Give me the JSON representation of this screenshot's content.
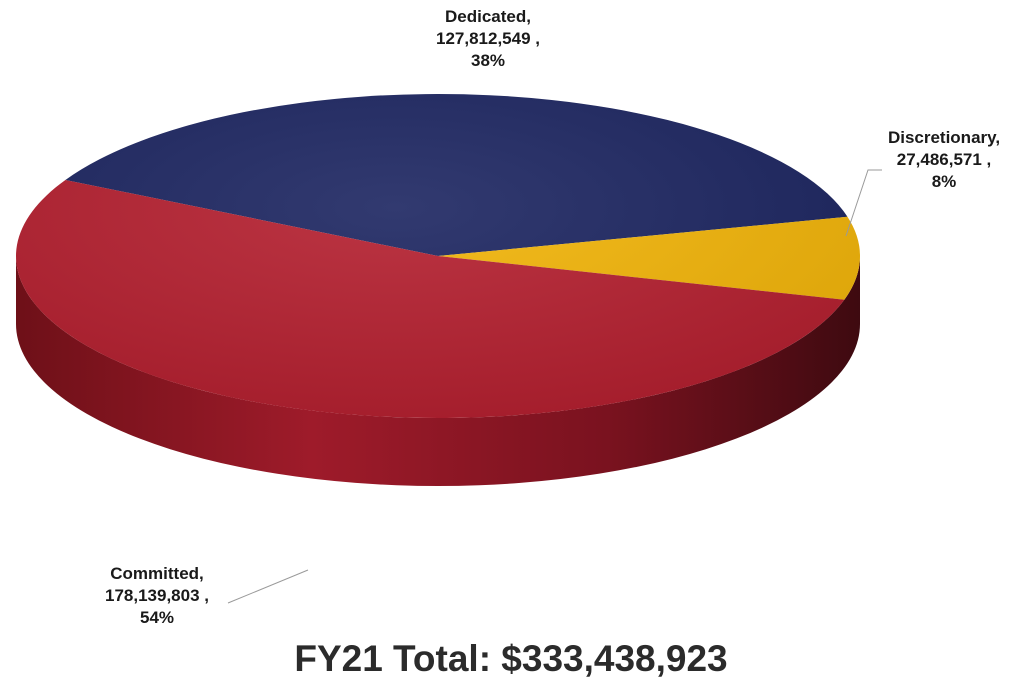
{
  "chart_data": {
    "type": "pie",
    "title": "FY21 Total: $333,438,923",
    "slices": [
      {
        "name": "Dedicated",
        "value": 127812549,
        "value_label": "127,812,549 ,",
        "percent_label": "38%",
        "color": "#1b2460"
      },
      {
        "name": "Discretionary",
        "value": 27486571,
        "value_label": "27,486,571 ,",
        "percent_label": "8%",
        "color": "#f2b407"
      },
      {
        "name": "Committed",
        "value": 178139803,
        "value_label": "178,139,803 ,",
        "percent_label": "54%",
        "color": "#b41e2e"
      }
    ],
    "labels": [
      {
        "lines": [
          "Dedicated,",
          "127,812,549 ,",
          "38%"
        ]
      },
      {
        "lines": [
          "Discretionary,",
          "27,486,571 ,",
          "8%"
        ]
      },
      {
        "lines": [
          "Committed,",
          "178,139,803 ,",
          "54%"
        ]
      }
    ],
    "legend": "none"
  }
}
